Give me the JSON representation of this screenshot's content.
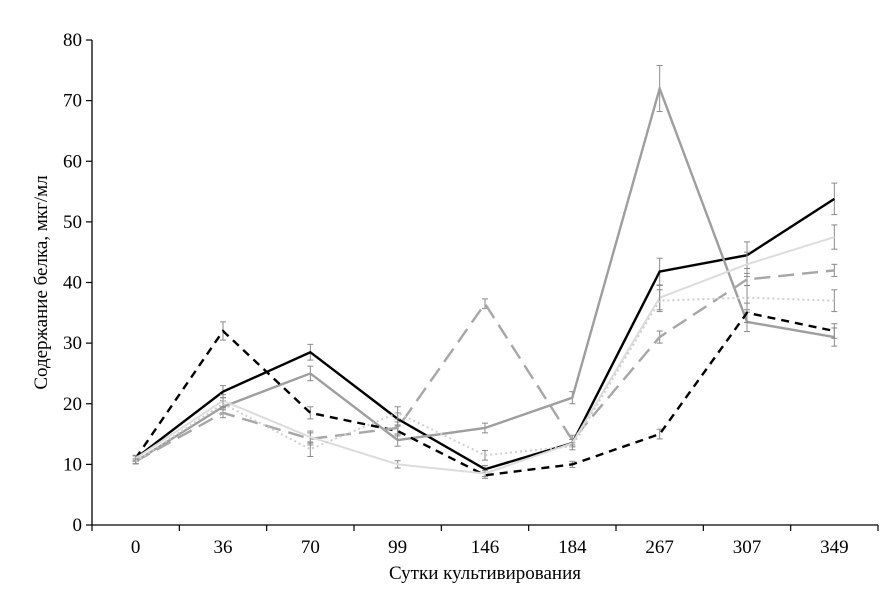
{
  "chart_data": {
    "type": "line",
    "xlabel": "Сутки культивирования",
    "ylabel": "Содержание белка, мкг/мл",
    "categories": [
      "0",
      "36",
      "70",
      "99",
      "146",
      "184",
      "267",
      "307",
      "349"
    ],
    "ylim": [
      0,
      80
    ],
    "yticks": [
      0,
      10,
      20,
      30,
      40,
      50,
      60,
      70,
      80
    ],
    "grid": false,
    "legend": "none",
    "series": [
      {
        "values": [
          11,
          22,
          28.5,
          17.5,
          9.2,
          13.5,
          41.8,
          44.5,
          53.8
        ],
        "errors": [
          0.5,
          1,
          1.3,
          1,
          0.6,
          0.6,
          2.2,
          2.2,
          2.6
        ],
        "color": "#000000",
        "dash": "solid",
        "width": 2.4
      },
      {
        "values": [
          10.5,
          19.5,
          25,
          14,
          16,
          21,
          72,
          33.5,
          31
        ],
        "errors": [
          0.4,
          1,
          1.2,
          1,
          0.8,
          1,
          3.8,
          1.6,
          1.5
        ],
        "color": "#9e9e9e",
        "dash": "solid",
        "width": 2.4
      },
      {
        "values": [
          11,
          32,
          18.5,
          15.5,
          8.2,
          10,
          15,
          35,
          32
        ],
        "errors": [
          0.4,
          1.5,
          1,
          0.8,
          0.5,
          0.5,
          0.8,
          1.6,
          1.2
        ],
        "color": "#000000",
        "dash": "8,6",
        "width": 2.4
      },
      {
        "values": [
          10.5,
          18.5,
          14.2,
          16,
          36.5,
          14,
          31,
          40.5,
          42
        ],
        "errors": [
          0.4,
          0.8,
          1,
          1,
          0.8,
          0.8,
          1,
          1,
          1
        ],
        "color": "#a6a6a6",
        "dash": "16,8",
        "width": 2.4
      },
      {
        "values": [
          11,
          20.5,
          14.5,
          10,
          8.5,
          13.5,
          37.5,
          43,
          47.5
        ],
        "errors": [
          0.4,
          1,
          1,
          0.6,
          0.5,
          0.6,
          2,
          2,
          2
        ],
        "color": "#dcdcdc",
        "dash": "solid",
        "width": 2
      },
      {
        "values": [
          10.5,
          20,
          12.5,
          18.5,
          11.5,
          13,
          37,
          37.5,
          37
        ],
        "errors": [
          0.4,
          1,
          1.2,
          1,
          0.8,
          0.6,
          1.8,
          2,
          1.8
        ],
        "color": "#cfcfcf",
        "dash": "2,3",
        "width": 2
      }
    ]
  }
}
